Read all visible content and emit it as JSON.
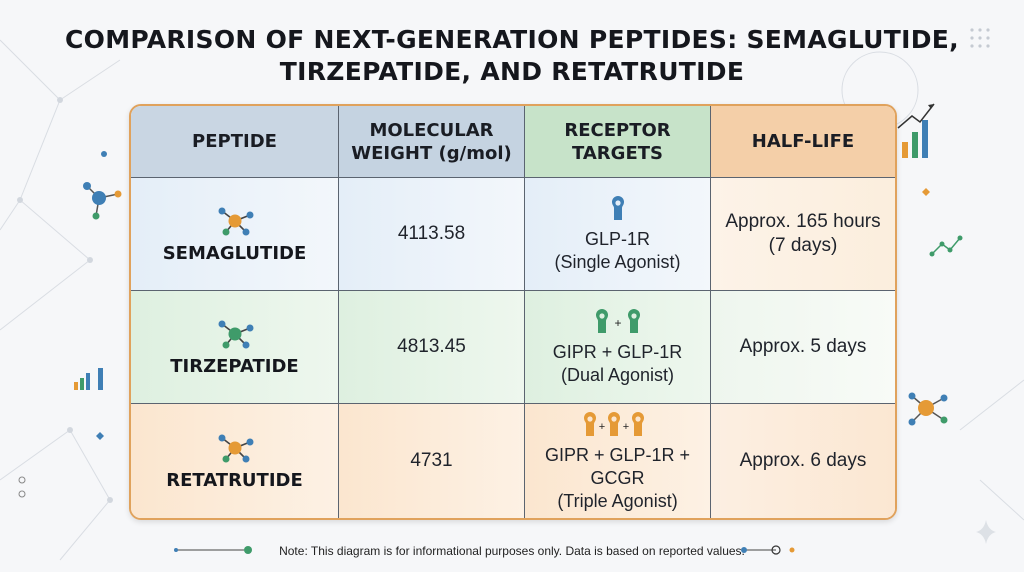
{
  "title": {
    "line1": "COMPARISON OF NEXT-GENERATION PEPTIDES: SEMAGLUTIDE,",
    "line2": "TIRZEPATIDE, AND RETATRUTIDE"
  },
  "table": {
    "headers": {
      "peptide": "PEPTIDE",
      "mw_line1": "MOLECULAR",
      "mw_line2": "WEIGHT (g/mol)",
      "rt_line1": "RECEPTOR",
      "rt_line2": "TARGETS",
      "half_life": "HALF-LIFE"
    },
    "rows": [
      {
        "name": "SEMAGLUTIDE",
        "mw": "4113.58",
        "receptor_line1": "GLP-1R",
        "receptor_line2": "(Single Agonist)",
        "half_line1": "Approx. 165 hours",
        "half_line2": "(7 days)",
        "icon": "molecule-icon",
        "receptor_icon": "receptor-single-icon"
      },
      {
        "name": "TIRZEPATIDE",
        "mw": "4813.45",
        "receptor_line1": "GIPR + GLP-1R",
        "receptor_line2": "(Dual Agonist)",
        "half_line1": "Approx. 5 days",
        "half_line2": "",
        "icon": "molecule-icon",
        "receptor_icon": "receptor-dual-icon"
      },
      {
        "name": "RETATRUTIDE",
        "mw": "4731",
        "receptor_line1": "GIPR + GLP-1R + GCGR",
        "receptor_line2": "(Triple Agonist)",
        "half_line1": "Approx. 6 days",
        "half_line2": "",
        "icon": "molecule-icon",
        "receptor_icon": "receptor-triple-icon"
      }
    ]
  },
  "note": "Note: This diagram is for informational purposes only. Data is based on reported values.",
  "colors": {
    "border": "#e0a25c",
    "blue": "#3f7fb5",
    "green": "#3f9b6a",
    "orange": "#e59a36"
  }
}
